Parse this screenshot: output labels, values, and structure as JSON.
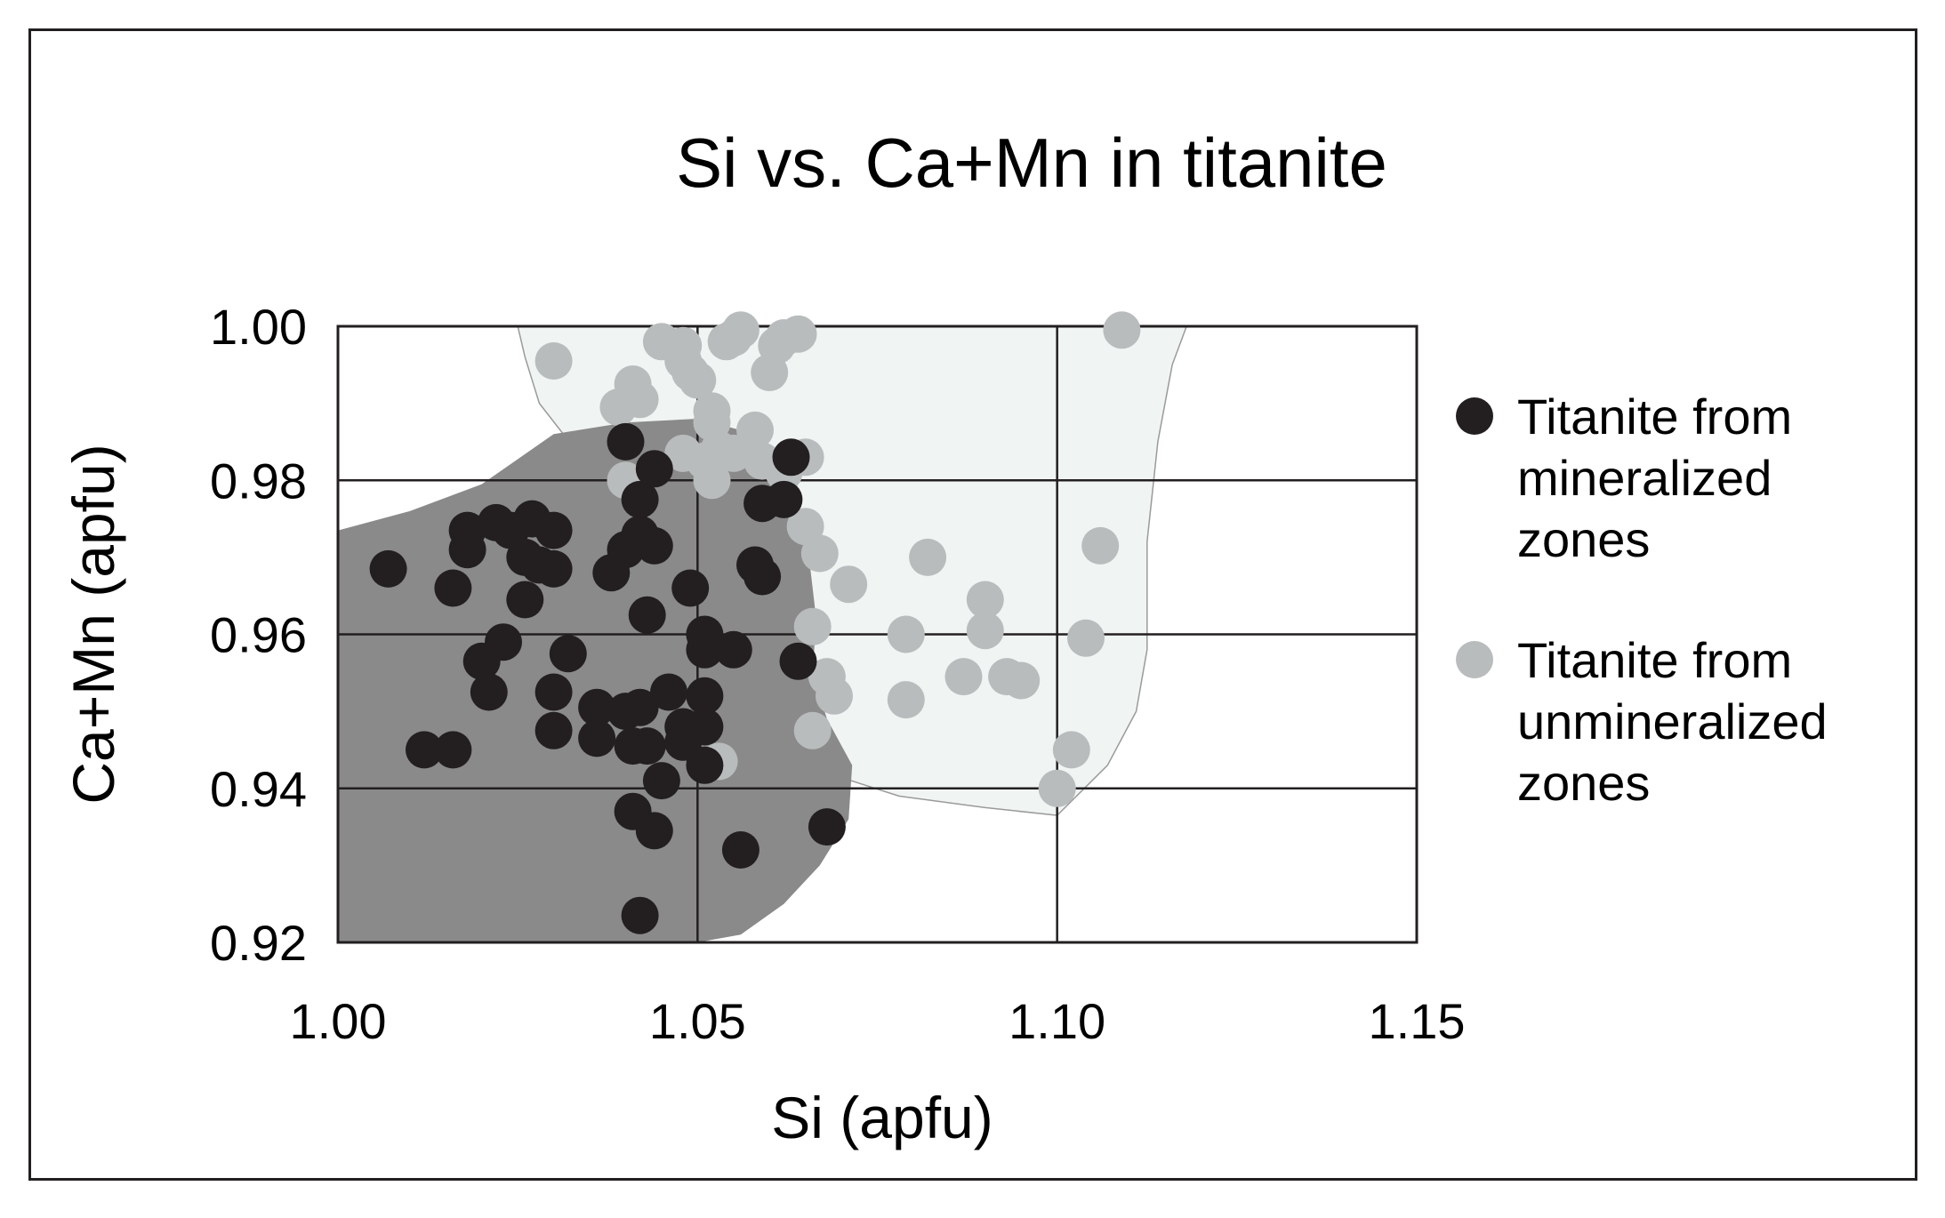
{
  "chart_data": {
    "type": "scatter",
    "title": "Si vs. Ca+Mn in titanite",
    "xlabel": "Si (apfu)",
    "ylabel": "Ca+Mn (apfu)",
    "xlim": [
      1.0,
      1.15
    ],
    "ylim": [
      0.92,
      1.0
    ],
    "x_ticks": [
      "1.00",
      "1.05",
      "1.10",
      "1.15"
    ],
    "x_tick_values": [
      1.0,
      1.05,
      1.1,
      1.15
    ],
    "y_ticks": [
      "1.00",
      "0.98",
      "0.96",
      "0.94",
      "0.92"
    ],
    "y_tick_values": [
      1.0,
      0.98,
      0.96,
      0.94,
      0.92
    ],
    "grid": true,
    "legend_position": "right",
    "series": [
      {
        "name": "Titanite from mineralized zones",
        "legend_lines": [
          "Titanite from",
          "mineralized",
          "zones"
        ],
        "color": "#231f20",
        "envelope_color": "#8a8a8a",
        "envelope": [
          [
            1.0,
            0.9735
          ],
          [
            1.01,
            0.976
          ],
          [
            1.02,
            0.9795
          ],
          [
            1.03,
            0.986
          ],
          [
            1.04,
            0.9875
          ],
          [
            1.05,
            0.988
          ],
          [
            1.056,
            0.9865
          ],
          [
            1.0595,
            0.983
          ],
          [
            1.0625,
            0.977
          ],
          [
            1.0655,
            0.97
          ],
          [
            1.0665,
            0.962
          ],
          [
            1.066,
            0.955
          ],
          [
            1.068,
            0.949
          ],
          [
            1.0715,
            0.943
          ],
          [
            1.071,
            0.936
          ],
          [
            1.067,
            0.93
          ],
          [
            1.062,
            0.925
          ],
          [
            1.056,
            0.921
          ],
          [
            1.05,
            0.92
          ],
          [
            1.0,
            0.92
          ]
        ],
        "points": [
          [
            1.007,
            0.9685
          ],
          [
            1.016,
            0.966
          ],
          [
            1.018,
            0.971
          ],
          [
            1.018,
            0.9735
          ],
          [
            1.022,
            0.9745
          ],
          [
            1.024,
            0.9735
          ],
          [
            1.026,
            0.97
          ],
          [
            1.028,
            0.969
          ],
          [
            1.027,
            0.975
          ],
          [
            1.03,
            0.9735
          ],
          [
            1.03,
            0.9685
          ],
          [
            1.026,
            0.9645
          ],
          [
            1.02,
            0.9565
          ],
          [
            1.023,
            0.959
          ],
          [
            1.021,
            0.9525
          ],
          [
            1.032,
            0.9575
          ],
          [
            1.03,
            0.9525
          ],
          [
            1.03,
            0.9475
          ],
          [
            1.012,
            0.945
          ],
          [
            1.016,
            0.945
          ],
          [
            1.036,
            0.9505
          ],
          [
            1.036,
            0.9465
          ],
          [
            1.038,
            0.968
          ],
          [
            1.04,
            0.971
          ],
          [
            1.04,
            0.985
          ],
          [
            1.042,
            0.973
          ],
          [
            1.042,
            0.9775
          ],
          [
            1.044,
            0.9715
          ],
          [
            1.044,
            0.9815
          ],
          [
            1.043,
            0.9625
          ],
          [
            1.04,
            0.95
          ],
          [
            1.042,
            0.9505
          ],
          [
            1.046,
            0.9525
          ],
          [
            1.048,
            0.948
          ],
          [
            1.041,
            0.9455
          ],
          [
            1.043,
            0.9455
          ],
          [
            1.048,
            0.946
          ],
          [
            1.045,
            0.941
          ],
          [
            1.051,
            0.943
          ],
          [
            1.051,
            0.948
          ],
          [
            1.051,
            0.952
          ],
          [
            1.051,
            0.958
          ],
          [
            1.051,
            0.96
          ],
          [
            1.049,
            0.966
          ],
          [
            1.055,
            0.958
          ],
          [
            1.058,
            0.969
          ],
          [
            1.059,
            0.9675
          ],
          [
            1.059,
            0.977
          ],
          [
            1.062,
            0.9775
          ],
          [
            1.063,
            0.983
          ],
          [
            1.064,
            0.9565
          ],
          [
            1.041,
            0.937
          ],
          [
            1.044,
            0.9345
          ],
          [
            1.056,
            0.932
          ],
          [
            1.068,
            0.935
          ],
          [
            1.042,
            0.9235
          ]
        ]
      },
      {
        "name": "Titanite from unmineralized zones",
        "legend_lines": [
          "Titanite from",
          "unmineralized",
          "zones"
        ],
        "color": "#b9bcbd",
        "envelope_color": "#f0f4f3",
        "envelope": [
          [
            1.025,
            1.0
          ],
          [
            1.118,
            1.0
          ],
          [
            1.116,
            0.995
          ],
          [
            1.114,
            0.985
          ],
          [
            1.1125,
            0.972
          ],
          [
            1.1125,
            0.958
          ],
          [
            1.111,
            0.95
          ],
          [
            1.107,
            0.943
          ],
          [
            1.1,
            0.9365
          ],
          [
            1.09,
            0.9375
          ],
          [
            1.078,
            0.939
          ],
          [
            1.068,
            0.942
          ],
          [
            1.062,
            0.948
          ],
          [
            1.062,
            0.96
          ],
          [
            1.062,
            0.97
          ],
          [
            1.056,
            0.977
          ],
          [
            1.046,
            0.979
          ],
          [
            1.039,
            0.98
          ],
          [
            1.033,
            0.984
          ],
          [
            1.028,
            0.99
          ],
          [
            1.026,
            0.996
          ]
        ],
        "points": [
          [
            1.03,
            0.9955
          ],
          [
            1.039,
            0.9895
          ],
          [
            1.041,
            0.9925
          ],
          [
            1.042,
            0.9905
          ],
          [
            1.04,
            0.98
          ],
          [
            1.045,
            0.998
          ],
          [
            1.048,
            0.9975
          ],
          [
            1.048,
            0.9955
          ],
          [
            1.049,
            0.994
          ],
          [
            1.05,
            0.993
          ],
          [
            1.052,
            0.989
          ],
          [
            1.052,
            0.9875
          ],
          [
            1.048,
            0.9835
          ],
          [
            1.051,
            0.9825
          ],
          [
            1.053,
            0.984
          ],
          [
            1.055,
            0.9835
          ],
          [
            1.052,
            0.98
          ],
          [
            1.054,
            0.998
          ],
          [
            1.055,
            0.9985
          ],
          [
            1.056,
            0.9995
          ],
          [
            1.06,
            0.994
          ],
          [
            1.061,
            0.9975
          ],
          [
            1.062,
            0.9985
          ],
          [
            1.064,
            0.999
          ],
          [
            1.058,
            0.9865
          ],
          [
            1.059,
            0.9825
          ],
          [
            1.062,
            0.981
          ],
          [
            1.065,
            0.983
          ],
          [
            1.065,
            0.974
          ],
          [
            1.067,
            0.9705
          ],
          [
            1.071,
            0.9665
          ],
          [
            1.066,
            0.961
          ],
          [
            1.068,
            0.9545
          ],
          [
            1.069,
            0.952
          ],
          [
            1.066,
            0.9475
          ],
          [
            1.053,
            0.9435
          ],
          [
            1.079,
            0.96
          ],
          [
            1.079,
            0.9515
          ],
          [
            1.082,
            0.97
          ],
          [
            1.087,
            0.9545
          ],
          [
            1.09,
            0.9645
          ],
          [
            1.09,
            0.9605
          ],
          [
            1.093,
            0.9545
          ],
          [
            1.095,
            0.954
          ],
          [
            1.104,
            0.9595
          ],
          [
            1.102,
            0.945
          ],
          [
            1.1,
            0.94
          ],
          [
            1.106,
            0.9715
          ],
          [
            1.109,
            0.9995
          ]
        ]
      }
    ]
  }
}
